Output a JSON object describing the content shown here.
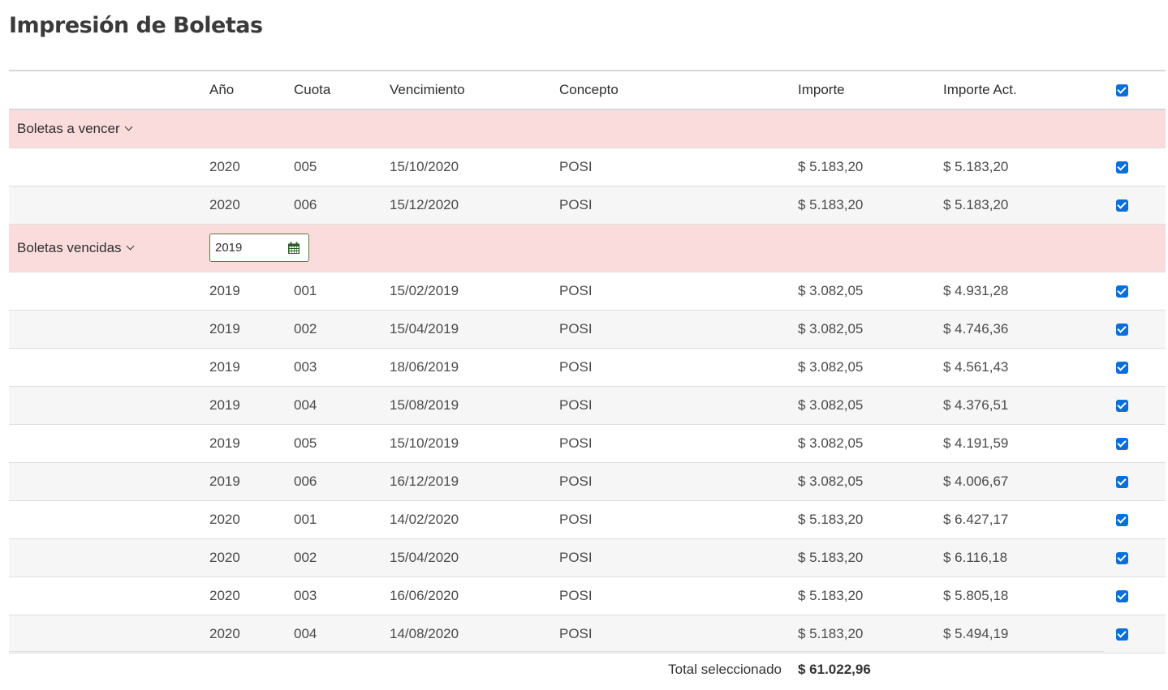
{
  "page": {
    "title": "Impresión de Boletas"
  },
  "table": {
    "headers": {
      "anio": "Año",
      "cuota": "Cuota",
      "vencimiento": "Vencimiento",
      "concepto": "Concepto",
      "importe": "Importe",
      "importe_act": "Importe Act."
    },
    "select_all_checked": true
  },
  "groups": {
    "a_vencer": {
      "label": "Boletas a vencer",
      "rows": [
        {
          "anio": "2020",
          "cuota": "005",
          "vencimiento": "15/10/2020",
          "concepto": "POSI",
          "importe": "$ 5.183,20",
          "importe_act": "$ 5.183,20",
          "checked": true
        },
        {
          "anio": "2020",
          "cuota": "006",
          "vencimiento": "15/12/2020",
          "concepto": "POSI",
          "importe": "$ 5.183,20",
          "importe_act": "$ 5.183,20",
          "checked": true
        }
      ]
    },
    "vencidas": {
      "label": "Boletas vencidas",
      "year_filter": "2019",
      "rows": [
        {
          "anio": "2019",
          "cuota": "001",
          "vencimiento": "15/02/2019",
          "concepto": "POSI",
          "importe": "$ 3.082,05",
          "importe_act": "$ 4.931,28",
          "checked": true
        },
        {
          "anio": "2019",
          "cuota": "002",
          "vencimiento": "15/04/2019",
          "concepto": "POSI",
          "importe": "$ 3.082,05",
          "importe_act": "$ 4.746,36",
          "checked": true
        },
        {
          "anio": "2019",
          "cuota": "003",
          "vencimiento": "18/06/2019",
          "concepto": "POSI",
          "importe": "$ 3.082,05",
          "importe_act": "$ 4.561,43",
          "checked": true
        },
        {
          "anio": "2019",
          "cuota": "004",
          "vencimiento": "15/08/2019",
          "concepto": "POSI",
          "importe": "$ 3.082,05",
          "importe_act": "$ 4.376,51",
          "checked": true
        },
        {
          "anio": "2019",
          "cuota": "005",
          "vencimiento": "15/10/2019",
          "concepto": "POSI",
          "importe": "$ 3.082,05",
          "importe_act": "$ 4.191,59",
          "checked": true
        },
        {
          "anio": "2019",
          "cuota": "006",
          "vencimiento": "16/12/2019",
          "concepto": "POSI",
          "importe": "$ 3.082,05",
          "importe_act": "$ 4.006,67",
          "checked": true
        },
        {
          "anio": "2020",
          "cuota": "001",
          "vencimiento": "14/02/2020",
          "concepto": "POSI",
          "importe": "$ 5.183,20",
          "importe_act": "$ 6.427,17",
          "checked": true
        },
        {
          "anio": "2020",
          "cuota": "002",
          "vencimiento": "15/04/2020",
          "concepto": "POSI",
          "importe": "$ 5.183,20",
          "importe_act": "$ 6.116,18",
          "checked": true
        },
        {
          "anio": "2020",
          "cuota": "003",
          "vencimiento": "16/06/2020",
          "concepto": "POSI",
          "importe": "$ 5.183,20",
          "importe_act": "$ 5.805,18",
          "checked": true
        },
        {
          "anio": "2020",
          "cuota": "004",
          "vencimiento": "14/08/2020",
          "concepto": "POSI",
          "importe": "$ 5.183,20",
          "importe_act": "$ 5.494,19",
          "checked": true
        }
      ]
    }
  },
  "total": {
    "label": "Total seleccionado",
    "value": "$ 61.022,96"
  },
  "colors": {
    "group_bg": "#fbdcdc",
    "alt_row_bg": "#f6f6f6",
    "checkbox": "#0b6fd9",
    "picker_border": "#5a7a4a"
  },
  "icons": {
    "group_toggle": "chevron-down-icon",
    "year_picker": "calendar-icon"
  }
}
